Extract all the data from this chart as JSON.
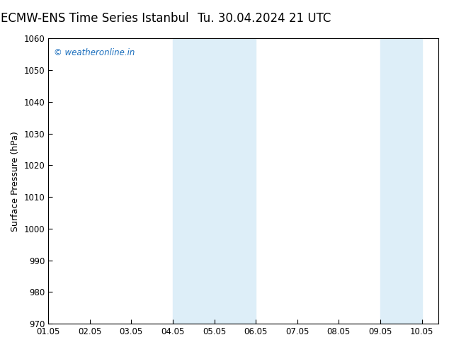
{
  "title_left": "ECMW-ENS Time Series Istanbul",
  "title_right": "Tu. 30.04.2024 21 UTC",
  "ylabel": "Surface Pressure (hPa)",
  "ylim": [
    970,
    1060
  ],
  "yticks": [
    970,
    980,
    990,
    1000,
    1010,
    1020,
    1030,
    1040,
    1050,
    1060
  ],
  "xlim": [
    0,
    9.4
  ],
  "xtick_labels": [
    "01.05",
    "02.05",
    "03.05",
    "04.05",
    "05.05",
    "06.05",
    "07.05",
    "08.05",
    "09.05",
    "10.05"
  ],
  "xtick_positions": [
    0,
    1,
    2,
    3,
    4,
    5,
    6,
    7,
    8,
    9
  ],
  "shaded_bands": [
    {
      "x_start": 3.0,
      "x_end": 5.0
    },
    {
      "x_start": 8.0,
      "x_end": 9.0
    }
  ],
  "band_color": "#ddeef8",
  "background_color": "#ffffff",
  "watermark_text": "© weatheronline.in",
  "watermark_color": "#1a6ebd",
  "title_fontsize": 12,
  "axis_label_fontsize": 9,
  "tick_fontsize": 8.5,
  "watermark_fontsize": 8.5,
  "tick_color": "#000000",
  "spine_color": "#000000",
  "title_color": "#000000"
}
